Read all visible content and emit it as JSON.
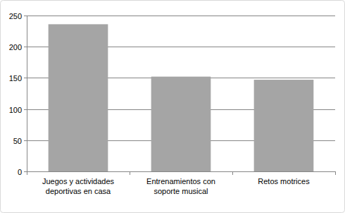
{
  "chart_data": {
    "type": "bar",
    "categories": [
      "Juegos y actividades deportivas en casa",
      "Entrenamientos con soporte musical",
      "Retos motrices"
    ],
    "values": [
      236,
      152,
      147
    ],
    "color": "#a5a5a5",
    "ylim": [
      0,
      250
    ],
    "yticks": [
      0,
      50,
      100,
      150,
      200,
      250
    ],
    "grid": true
  }
}
